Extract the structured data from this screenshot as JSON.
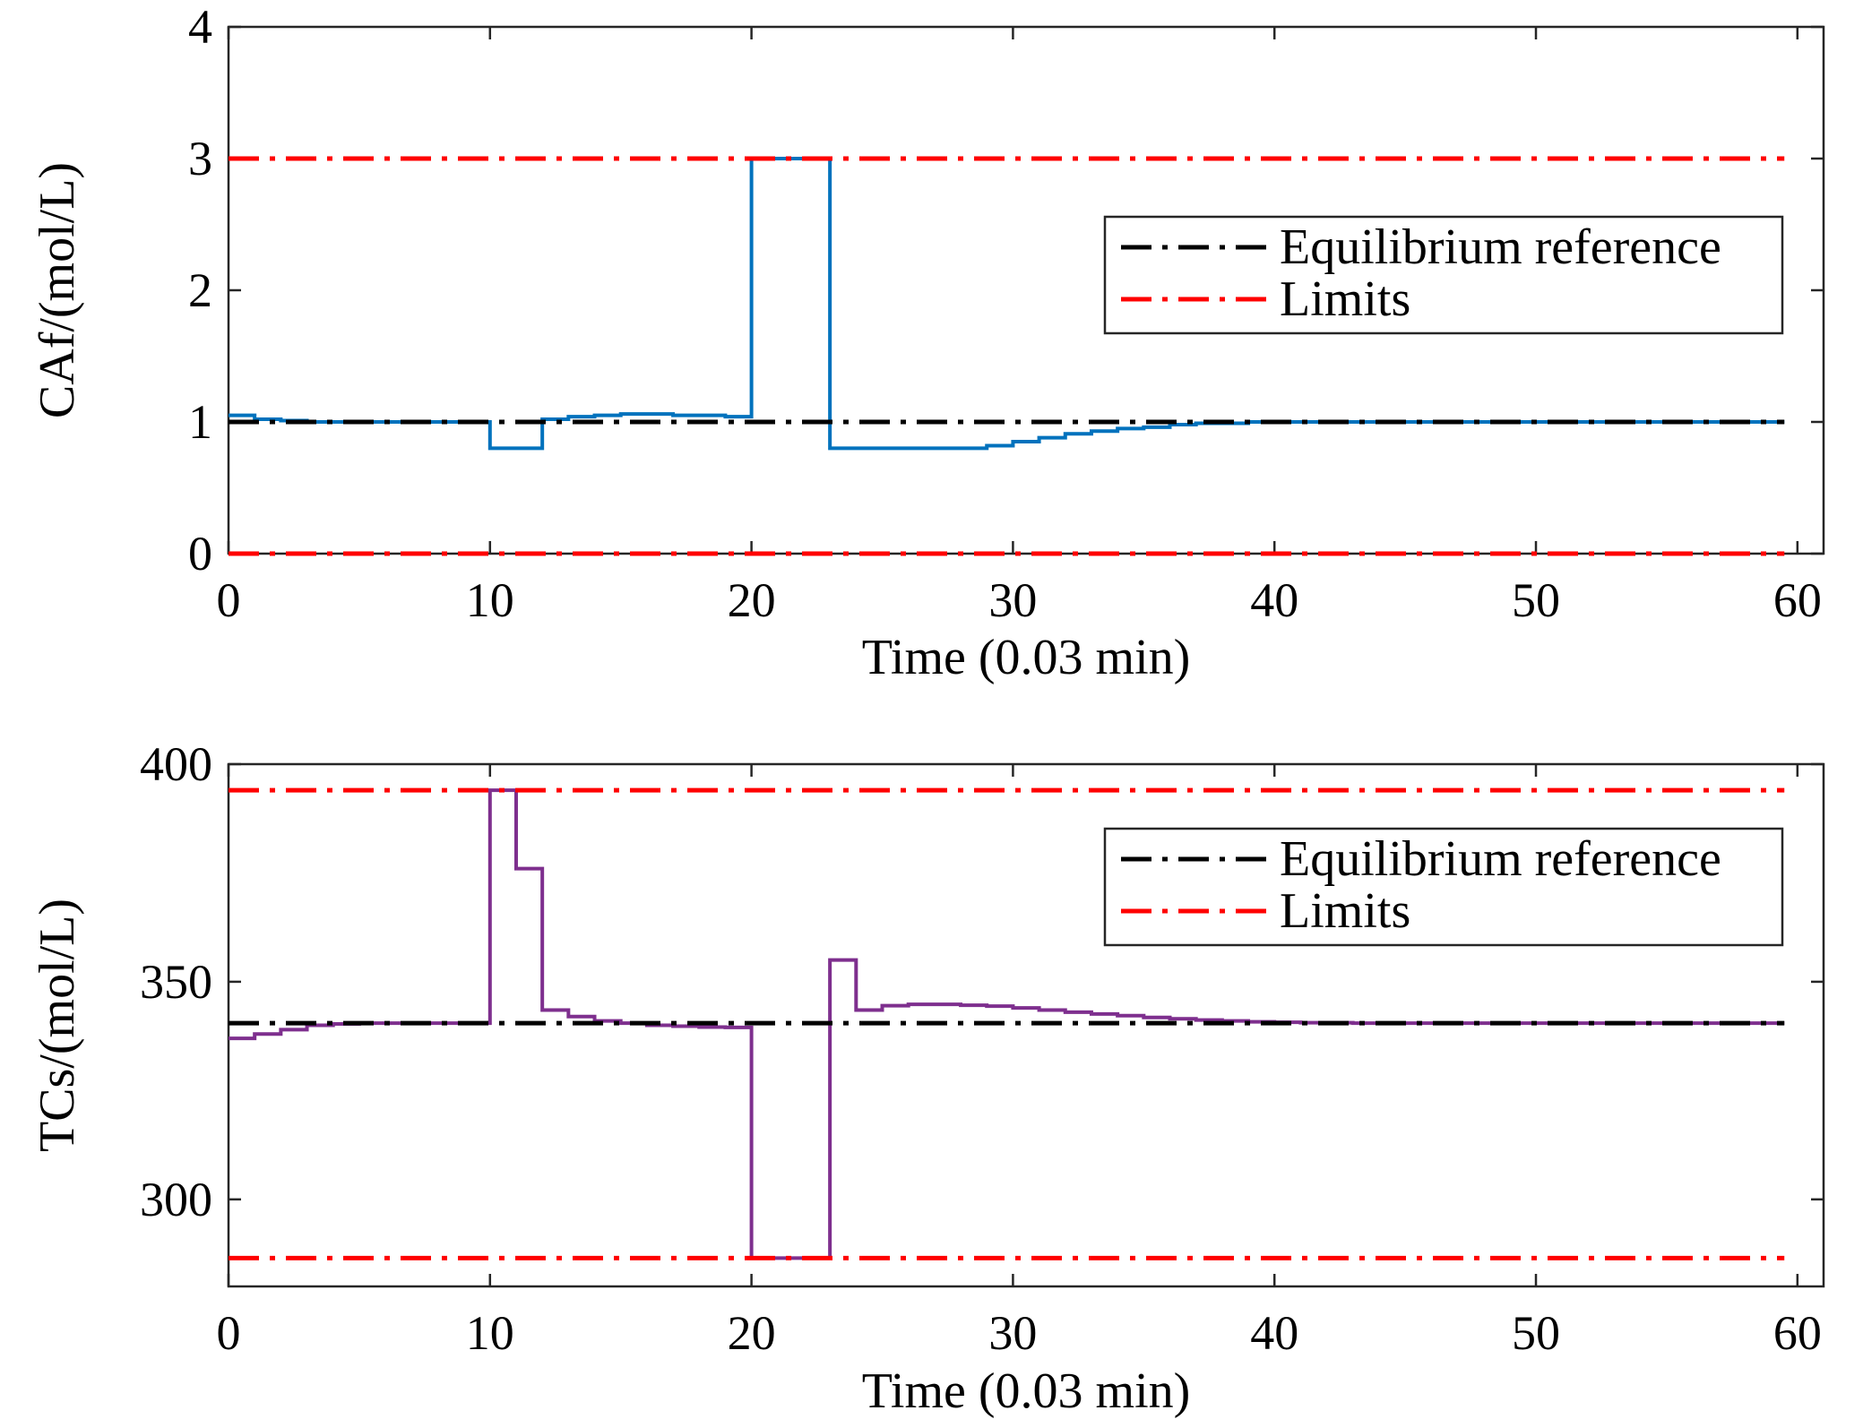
{
  "chart_data": [
    {
      "type": "line",
      "title": "",
      "xlabel": "Time (0.03 min)",
      "ylabel": "CAf/(mol/L)",
      "xlim": [
        0,
        61
      ],
      "ylim": [
        0,
        4
      ],
      "xticks": [
        0,
        10,
        20,
        30,
        40,
        50,
        60
      ],
      "yticks": [
        0,
        1,
        2,
        3,
        4
      ],
      "grid": false,
      "legend_position": "center-right",
      "legend": [
        {
          "label": "Equilibrium reference",
          "color": "#000000",
          "style": "dash-dot"
        },
        {
          "label": "Limits",
          "color": "#ff0000",
          "style": "dash-dot"
        }
      ],
      "reference_lines": [
        {
          "name": "Equilibrium reference",
          "y": 1.0,
          "color": "#000000",
          "x": [
            0,
            59.5
          ]
        },
        {
          "name": "Limits",
          "y": 3.0,
          "color": "#ff0000",
          "x": [
            0,
            59.5
          ]
        },
        {
          "name": "Limits",
          "y": 0.0,
          "color": "#ff0000",
          "x": [
            0,
            59.5
          ]
        }
      ],
      "series": [
        {
          "color": "#0072bd",
          "step": true,
          "x": [
            0,
            1,
            2,
            3,
            4,
            5,
            6,
            7,
            8,
            9,
            10,
            11,
            12,
            13,
            14,
            15,
            16,
            17,
            18,
            19,
            20,
            21,
            22,
            23,
            24,
            25,
            26,
            27,
            28,
            29,
            30,
            31,
            32,
            33,
            34,
            35,
            36,
            37,
            38,
            39,
            40,
            41,
            42,
            43,
            44,
            45,
            46,
            47,
            48,
            49,
            50,
            51,
            52,
            53,
            54,
            55,
            56,
            57,
            58,
            59.5
          ],
          "y": [
            1.05,
            1.02,
            1.01,
            1.0,
            1.0,
            1.0,
            1.0,
            1.0,
            1.0,
            1.0,
            0.8,
            0.8,
            1.02,
            1.04,
            1.05,
            1.06,
            1.06,
            1.05,
            1.05,
            1.04,
            3.0,
            3.0,
            3.0,
            0.8,
            0.8,
            0.8,
            0.8,
            0.8,
            0.8,
            0.82,
            0.85,
            0.88,
            0.91,
            0.93,
            0.95,
            0.96,
            0.98,
            0.99,
            0.99,
            1.0,
            1.0,
            1.0,
            1.0,
            1.0,
            1.0,
            1.0,
            1.0,
            1.0,
            1.0,
            1.0,
            1.0,
            1.0,
            1.0,
            1.0,
            1.0,
            1.0,
            1.0,
            1.0,
            1.0,
            1.0
          ]
        }
      ]
    },
    {
      "type": "line",
      "title": "",
      "xlabel": "Time (0.03 min)",
      "ylabel": "TCs/(mol/L)",
      "xlim": [
        0,
        61
      ],
      "ylim": [
        280,
        400
      ],
      "xticks": [
        0,
        10,
        20,
        30,
        40,
        50,
        60
      ],
      "yticks": [
        300,
        350,
        400
      ],
      "grid": false,
      "legend_position": "center-right",
      "legend": [
        {
          "label": "Equilibrium reference",
          "color": "#000000",
          "style": "dash-dot"
        },
        {
          "label": "Limits",
          "color": "#ff0000",
          "style": "dash-dot"
        }
      ],
      "reference_lines": [
        {
          "name": "Equilibrium reference",
          "y": 340.5,
          "color": "#000000",
          "x": [
            0,
            59.5
          ]
        },
        {
          "name": "Limits",
          "y": 394,
          "color": "#ff0000",
          "x": [
            0,
            59.5
          ]
        },
        {
          "name": "Limits",
          "y": 286.5,
          "color": "#ff0000",
          "x": [
            0,
            59.5
          ]
        }
      ],
      "series": [
        {
          "color": "#7e2f8e",
          "step": true,
          "x": [
            0,
            1,
            2,
            3,
            4,
            5,
            6,
            7,
            8,
            9,
            10,
            11,
            12,
            13,
            14,
            15,
            16,
            17,
            18,
            19,
            20,
            21,
            22,
            23,
            24,
            25,
            26,
            27,
            28,
            29,
            30,
            31,
            32,
            33,
            34,
            35,
            36,
            37,
            38,
            39,
            40,
            41,
            42,
            43,
            44,
            45,
            46,
            47,
            48,
            49,
            50,
            51,
            52,
            53,
            54,
            55,
            56,
            57,
            58,
            59.5
          ],
          "y": [
            337,
            338,
            339,
            340,
            340.3,
            340.5,
            340.5,
            340.5,
            340.5,
            340.5,
            394,
            376,
            343.5,
            342,
            341,
            340.5,
            340,
            339.8,
            339.6,
            339.5,
            286.5,
            286.5,
            286.5,
            355,
            343.5,
            344.5,
            344.8,
            344.8,
            344.6,
            344.4,
            344,
            343.5,
            343,
            342.6,
            342.2,
            341.8,
            341.5,
            341.2,
            341,
            340.8,
            340.7,
            340.6,
            340.6,
            340.5,
            340.5,
            340.5,
            340.5,
            340.5,
            340.5,
            340.5,
            340.5,
            340.5,
            340.5,
            340.5,
            340.5,
            340.5,
            340.5,
            340.5,
            340.5,
            340.5
          ]
        }
      ]
    }
  ]
}
